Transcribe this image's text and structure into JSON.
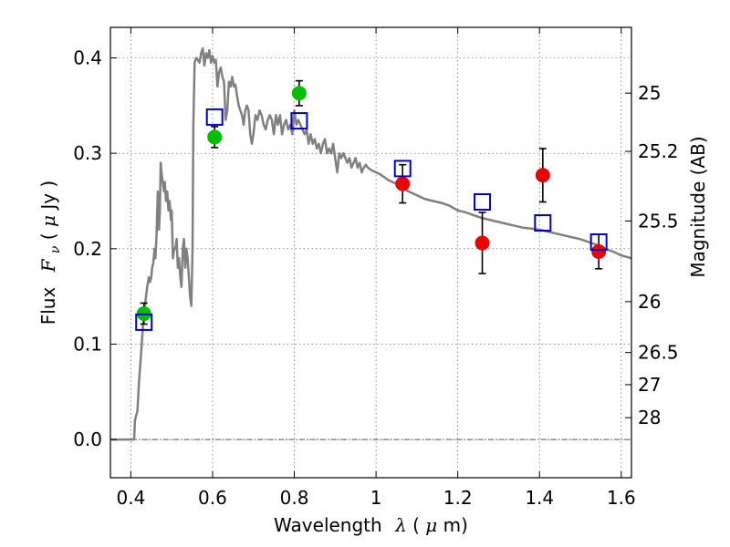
{
  "chart_data": {
    "type": "scatter",
    "xlabel_text": "Wavelength",
    "xlabel_symbol": "λ",
    "xlabel_unit_open": " (",
    "xlabel_unit_mu": "μ",
    "xlabel_unit_close": "m)",
    "ylabel_text": "Flux",
    "ylabel_symbol": "F",
    "ylabel_sub": "ν",
    "ylabel_unit_open": " ( ",
    "ylabel_unit_mu": "μ",
    "ylabel_unit_close": "Jy )",
    "y2label": "Magnitude (AB)",
    "xlim": [
      0.35,
      1.625
    ],
    "ylim": [
      -0.04,
      0.432
    ],
    "grid": true,
    "x_ticks": [
      0.4,
      0.6,
      0.8,
      1.0,
      1.2,
      1.4,
      1.6
    ],
    "x_tick_labels": [
      "0.4",
      "0.6",
      "0.8",
      "1",
      "1.2",
      "1.4",
      "1.6"
    ],
    "y_ticks": [
      0.0,
      0.1,
      0.2,
      0.3,
      0.4
    ],
    "y_tick_labels": [
      "0.0",
      "0.1",
      "0.2",
      "0.3",
      "0.4"
    ],
    "mag_ticks": [
      25,
      25.2,
      25.5,
      26,
      26.5,
      27,
      28
    ],
    "mag_tick_labels": [
      "25",
      "25.2",
      "25.5",
      "26",
      "26.5",
      "27",
      "28"
    ],
    "colors": {
      "model": "#808080",
      "green": "#00bf00",
      "red": "#ee0000",
      "blue": "#0000cc",
      "zero_line": "#555555"
    },
    "series": [
      {
        "type": "line",
        "x": [
          0.35,
          0.408,
          0.41,
          0.413,
          0.416,
          0.42,
          0.425,
          0.43,
          0.433,
          0.437,
          0.44,
          0.444,
          0.447,
          0.45,
          0.452,
          0.455,
          0.458,
          0.46,
          0.463,
          0.466,
          0.469,
          0.471,
          0.473,
          0.475,
          0.478,
          0.481,
          0.483,
          0.486,
          0.489,
          0.492,
          0.495,
          0.498,
          0.5,
          0.503,
          0.506,
          0.509,
          0.512,
          0.515,
          0.518,
          0.521,
          0.524,
          0.527,
          0.53,
          0.533,
          0.536,
          0.539,
          0.542,
          0.545,
          0.548,
          0.551,
          0.553,
          0.556,
          0.56,
          0.564,
          0.568,
          0.572,
          0.576,
          0.58,
          0.584,
          0.588,
          0.592,
          0.596,
          0.6,
          0.604,
          0.608,
          0.612,
          0.616,
          0.62,
          0.624,
          0.628,
          0.632,
          0.636,
          0.64,
          0.644,
          0.648,
          0.652,
          0.656,
          0.66,
          0.664,
          0.668,
          0.672,
          0.676,
          0.68,
          0.684,
          0.688,
          0.692,
          0.696,
          0.7,
          0.705,
          0.71,
          0.715,
          0.72,
          0.725,
          0.73,
          0.735,
          0.74,
          0.745,
          0.75,
          0.755,
          0.76,
          0.765,
          0.77,
          0.775,
          0.78,
          0.785,
          0.79,
          0.795,
          0.8,
          0.805,
          0.81,
          0.815,
          0.82,
          0.825,
          0.83,
          0.835,
          0.84,
          0.845,
          0.85,
          0.855,
          0.86,
          0.865,
          0.87,
          0.875,
          0.88,
          0.885,
          0.89,
          0.895,
          0.9,
          0.905,
          0.91,
          0.915,
          0.92,
          0.925,
          0.93,
          0.935,
          0.94,
          0.945,
          0.95,
          0.955,
          0.96,
          0.965,
          0.97,
          0.975,
          0.98,
          0.99,
          1.0,
          1.01,
          1.02,
          1.03,
          1.04,
          1.05,
          1.06,
          1.08,
          1.1,
          1.12,
          1.14,
          1.16,
          1.18,
          1.2,
          1.22,
          1.24,
          1.26,
          1.28,
          1.3,
          1.32,
          1.34,
          1.36,
          1.38,
          1.4,
          1.42,
          1.44,
          1.46,
          1.48,
          1.5,
          1.52,
          1.54,
          1.56,
          1.58,
          1.6,
          1.625
        ],
        "y": [
          0.0,
          0.0,
          0.02,
          0.025,
          0.03,
          0.06,
          0.09,
          0.12,
          0.135,
          0.15,
          0.16,
          0.17,
          0.165,
          0.17,
          0.18,
          0.185,
          0.2,
          0.19,
          0.215,
          0.26,
          0.22,
          0.24,
          0.29,
          0.28,
          0.27,
          0.26,
          0.27,
          0.25,
          0.26,
          0.24,
          0.25,
          0.23,
          0.24,
          0.19,
          0.2,
          0.2,
          0.21,
          0.18,
          0.19,
          0.17,
          0.16,
          0.2,
          0.21,
          0.18,
          0.2,
          0.19,
          0.17,
          0.15,
          0.14,
          0.2,
          0.33,
          0.395,
          0.4,
          0.398,
          0.395,
          0.405,
          0.41,
          0.392,
          0.405,
          0.4,
          0.408,
          0.395,
          0.402,
          0.395,
          0.398,
          0.37,
          0.385,
          0.39,
          0.38,
          0.375,
          0.335,
          0.345,
          0.375,
          0.37,
          0.38,
          0.37,
          0.372,
          0.36,
          0.35,
          0.345,
          0.34,
          0.33,
          0.345,
          0.35,
          0.345,
          0.32,
          0.31,
          0.32,
          0.34,
          0.335,
          0.345,
          0.34,
          0.33,
          0.325,
          0.335,
          0.34,
          0.335,
          0.32,
          0.34,
          0.33,
          0.34,
          0.32,
          0.33,
          0.335,
          0.325,
          0.33,
          0.32,
          0.345,
          0.33,
          0.335,
          0.33,
          0.325,
          0.32,
          0.325,
          0.31,
          0.32,
          0.31,
          0.315,
          0.305,
          0.31,
          0.3,
          0.31,
          0.315,
          0.3,
          0.305,
          0.3,
          0.31,
          0.295,
          0.28,
          0.3,
          0.295,
          0.3,
          0.295,
          0.29,
          0.295,
          0.285,
          0.29,
          0.295,
          0.285,
          0.29,
          0.28,
          0.285,
          0.288,
          0.285,
          0.282,
          0.28,
          0.278,
          0.275,
          0.272,
          0.27,
          0.268,
          0.265,
          0.26,
          0.256,
          0.252,
          0.25,
          0.248,
          0.245,
          0.24,
          0.238,
          0.235,
          0.232,
          0.23,
          0.228,
          0.226,
          0.224,
          0.222,
          0.221,
          0.22,
          0.218,
          0.216,
          0.214,
          0.212,
          0.21,
          0.207,
          0.204,
          0.2,
          0.197,
          0.193,
          0.19
        ]
      },
      {
        "type": "points",
        "marker": "circle",
        "color_key": "green",
        "x": [
          0.432,
          0.605,
          0.812
        ],
        "y": [
          0.132,
          0.317,
          0.363
        ],
        "err": [
          0.011,
          0.011,
          0.013
        ]
      },
      {
        "type": "points",
        "marker": "circle",
        "color_key": "red",
        "x": [
          1.065,
          1.26,
          1.408,
          1.545
        ],
        "y": [
          0.268,
          0.206,
          0.277,
          0.197
        ],
        "err": [
          0.02,
          0.032,
          0.028,
          0.018
        ]
      },
      {
        "type": "points",
        "marker": "square",
        "color_key": "blue",
        "x": [
          0.432,
          0.605,
          0.812,
          1.065,
          1.26,
          1.408,
          1.545
        ],
        "y": [
          0.123,
          0.338,
          0.334,
          0.284,
          0.249,
          0.227,
          0.207
        ]
      }
    ]
  }
}
